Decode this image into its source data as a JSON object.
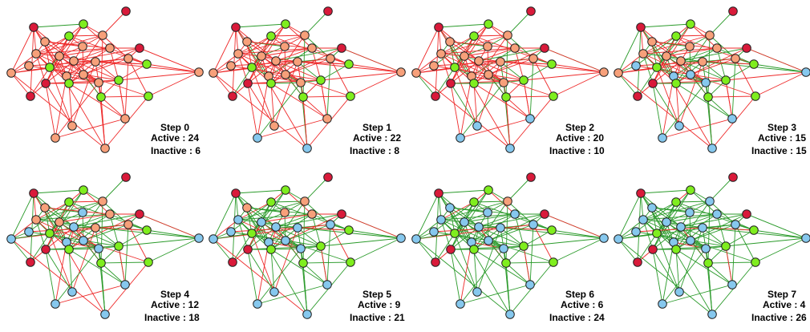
{
  "colors": {
    "node_red": "#d91a3a",
    "node_salmon": "#f7a07a",
    "node_green": "#7fee1e",
    "node_blue": "#86c8ee",
    "edge_red": "#ee2a2a",
    "edge_green": "#2a9a2a",
    "outline": "#222222"
  },
  "panels": [
    {
      "step": "Step 0",
      "active": "Active : 24",
      "inactive": "Inactive : 6",
      "green_edge_share": 0.05,
      "blue_nodes": 0
    },
    {
      "step": "Step 1",
      "active": "Active : 22",
      "inactive": "Inactive : 8",
      "green_edge_share": 0.3,
      "blue_nodes": 2
    },
    {
      "step": "Step 2",
      "active": "Active : 20",
      "inactive": "Inactive : 10",
      "green_edge_share": 0.45,
      "blue_nodes": 4
    },
    {
      "step": "Step 3",
      "active": "Active : 15",
      "inactive": "Inactive : 15",
      "green_edge_share": 0.6,
      "blue_nodes": 9
    },
    {
      "step": "Step 4",
      "active": "Active : 12",
      "inactive": "Inactive : 18",
      "green_edge_share": 0.72,
      "blue_nodes": 12
    },
    {
      "step": "Step 5",
      "active": "Active : 9",
      "inactive": "Inactive : 21",
      "green_edge_share": 0.82,
      "blue_nodes": 15
    },
    {
      "step": "Step 6",
      "active": "Active : 6",
      "inactive": "Inactive : 24",
      "green_edge_share": 0.9,
      "blue_nodes": 18
    },
    {
      "step": "Step 7",
      "active": "Active : 4",
      "inactive": "Inactive : 26",
      "green_edge_share": 0.95,
      "blue_nodes": 20
    }
  ]
}
